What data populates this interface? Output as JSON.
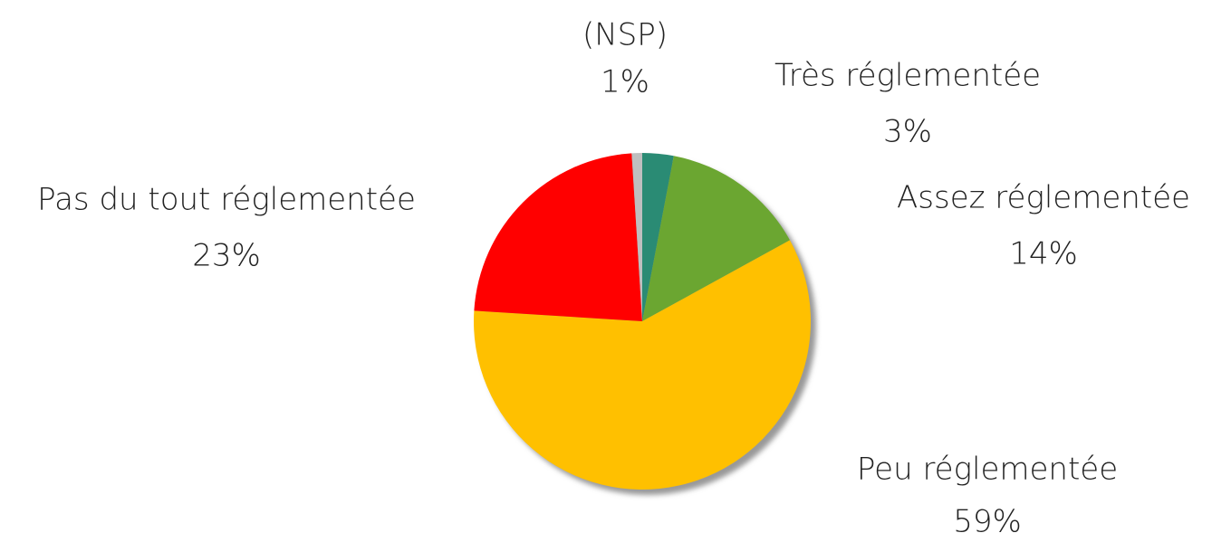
{
  "chart_data": {
    "type": "pie",
    "categories": [
      "Très réglementée",
      "Assez réglementée",
      "Peu réglementée",
      "Pas du tout réglementée",
      "(NSP)"
    ],
    "values": [
      3,
      14,
      59,
      23,
      1
    ],
    "value_labels": [
      "3%",
      "14%",
      "59%",
      "23%",
      "1%"
    ],
    "colors": [
      "#2a8b74",
      "#6ba631",
      "#ffc000",
      "#ff0000",
      "#bfbfbf"
    ]
  }
}
